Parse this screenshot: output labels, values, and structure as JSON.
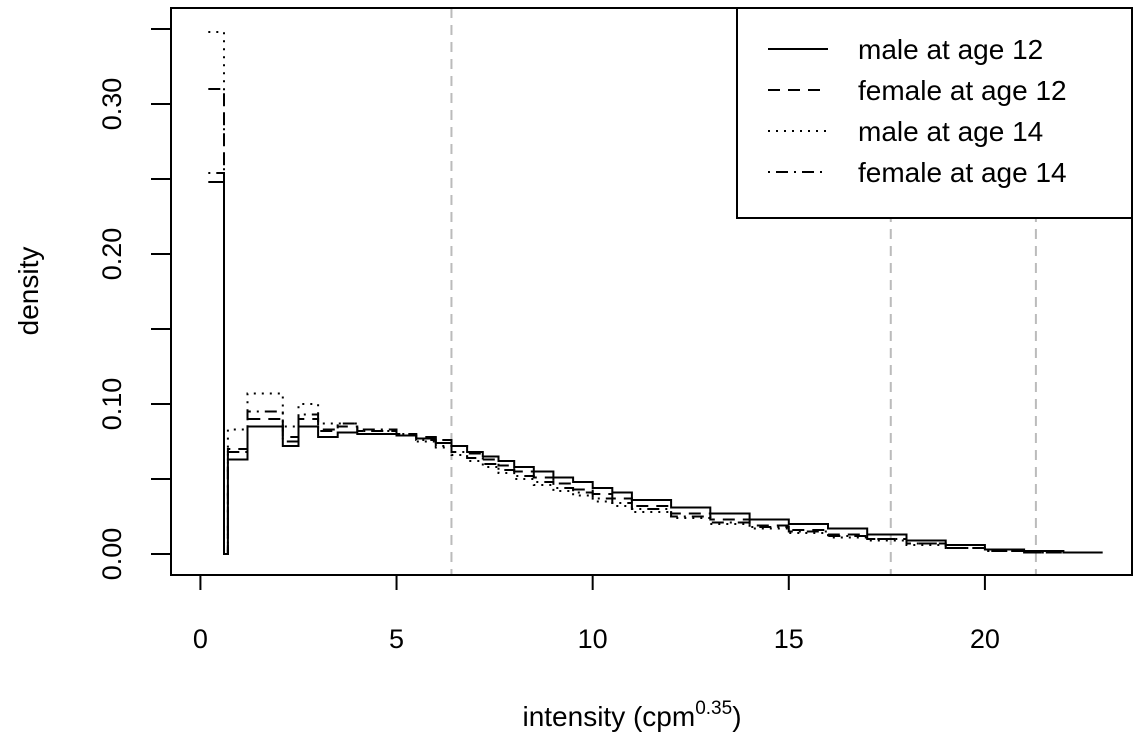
{
  "chart_data": {
    "type": "line",
    "xlabel_main": "intensity (cpm",
    "xlabel_sup": "0.35",
    "xlabel_close": ")",
    "ylabel": "density",
    "xlim": [
      -0.75,
      23.75
    ],
    "ylim": [
      -0.014,
      0.364
    ],
    "x_ticks": [
      0,
      5,
      10,
      15,
      20
    ],
    "x_tick_labels": [
      "0",
      "5",
      "10",
      "15",
      "20"
    ],
    "y_ticks": [
      0.0,
      0.05,
      0.1,
      0.15,
      0.2,
      0.25,
      0.3,
      0.35
    ],
    "y_tick_labels": [
      "0.00",
      "",
      "0.10",
      "",
      "0.20",
      "",
      "0.30",
      ""
    ],
    "vlines": [
      6.4,
      17.6,
      21.3
    ],
    "vline_color": "#bbbbbb",
    "legend_position": "top-right",
    "series": [
      {
        "name": "male at age 12",
        "linestyle": "solid",
        "x": [
          0.6,
          0.7,
          1.2,
          2.1,
          2.5,
          3.0,
          3.5,
          4.0,
          5.0,
          5.5,
          6.0,
          6.4,
          6.8,
          7.2,
          7.6,
          8.0,
          8.5,
          9.0,
          9.5,
          10.0,
          10.5,
          11.0,
          12.0,
          13.0,
          14.0,
          15.0,
          16.0,
          17.0,
          18.0,
          19.0,
          20.0,
          21.0,
          22.0,
          23.0
        ],
        "y": [
          0.248,
          0.0,
          0.063,
          0.085,
          0.072,
          0.085,
          0.078,
          0.081,
          0.08,
          0.079,
          0.077,
          0.074,
          0.072,
          0.068,
          0.065,
          0.062,
          0.058,
          0.055,
          0.051,
          0.048,
          0.044,
          0.041,
          0.036,
          0.031,
          0.027,
          0.023,
          0.02,
          0.017,
          0.013,
          0.009,
          0.006,
          0.003,
          0.002,
          0.001
        ]
      },
      {
        "name": "female at age 12",
        "linestyle": "dashed",
        "x": [
          0.6,
          0.7,
          1.2,
          2.1,
          2.5,
          3.0,
          3.5,
          4.0,
          5.0,
          5.5,
          6.0,
          6.4,
          6.8,
          7.2,
          7.6,
          8.0,
          8.5,
          9.0,
          9.5,
          10.0,
          10.5,
          11.0,
          12.0,
          13.0,
          14.0,
          15.0,
          16.0,
          17.0,
          18.0,
          19.0,
          20.0,
          21.0,
          22.0,
          23.0
        ],
        "y": [
          0.31,
          0.0,
          0.07,
          0.09,
          0.078,
          0.09,
          0.082,
          0.085,
          0.082,
          0.08,
          0.078,
          0.076,
          0.072,
          0.067,
          0.063,
          0.059,
          0.055,
          0.051,
          0.047,
          0.043,
          0.04,
          0.037,
          0.032,
          0.027,
          0.023,
          0.019,
          0.016,
          0.013,
          0.01,
          0.007,
          0.004,
          0.002,
          0.001,
          0.001
        ]
      },
      {
        "name": "male at age 14",
        "linestyle": "dotted",
        "x": [
          0.6,
          0.7,
          1.2,
          2.1,
          2.5,
          3.0,
          3.5,
          4.0,
          5.0,
          5.5,
          6.0,
          6.4,
          6.8,
          7.2,
          7.6,
          8.0,
          8.5,
          9.0,
          9.5,
          10.0,
          10.5,
          11.0,
          12.0,
          13.0,
          14.0,
          15.0,
          16.0,
          17.0,
          18.0,
          19.0,
          20.0,
          21.0,
          22.0,
          23.0
        ],
        "y": [
          0.348,
          0.0,
          0.083,
          0.107,
          0.085,
          0.1,
          0.087,
          0.087,
          0.082,
          0.079,
          0.075,
          0.071,
          0.066,
          0.062,
          0.058,
          0.054,
          0.05,
          0.046,
          0.042,
          0.039,
          0.035,
          0.032,
          0.028,
          0.024,
          0.02,
          0.017,
          0.014,
          0.011,
          0.009,
          0.006,
          0.004,
          0.002,
          0.001,
          0.001
        ]
      },
      {
        "name": "female at age 14",
        "linestyle": "dotdash",
        "x": [
          0.6,
          0.7,
          1.2,
          2.1,
          2.5,
          3.0,
          3.5,
          4.0,
          5.0,
          5.5,
          6.0,
          6.4,
          6.8,
          7.2,
          7.6,
          8.0,
          8.5,
          9.0,
          9.5,
          10.0,
          10.5,
          11.0,
          12.0,
          13.0,
          14.0,
          15.0,
          16.0,
          17.0,
          18.0,
          19.0,
          20.0,
          21.0,
          22.0,
          23.0
        ],
        "y": [
          0.254,
          0.0,
          0.068,
          0.095,
          0.075,
          0.093,
          0.083,
          0.087,
          0.083,
          0.08,
          0.076,
          0.072,
          0.068,
          0.064,
          0.06,
          0.056,
          0.052,
          0.048,
          0.044,
          0.041,
          0.037,
          0.034,
          0.03,
          0.025,
          0.021,
          0.018,
          0.015,
          0.012,
          0.01,
          0.007,
          0.004,
          0.002,
          0.001,
          0.001
        ]
      }
    ]
  }
}
